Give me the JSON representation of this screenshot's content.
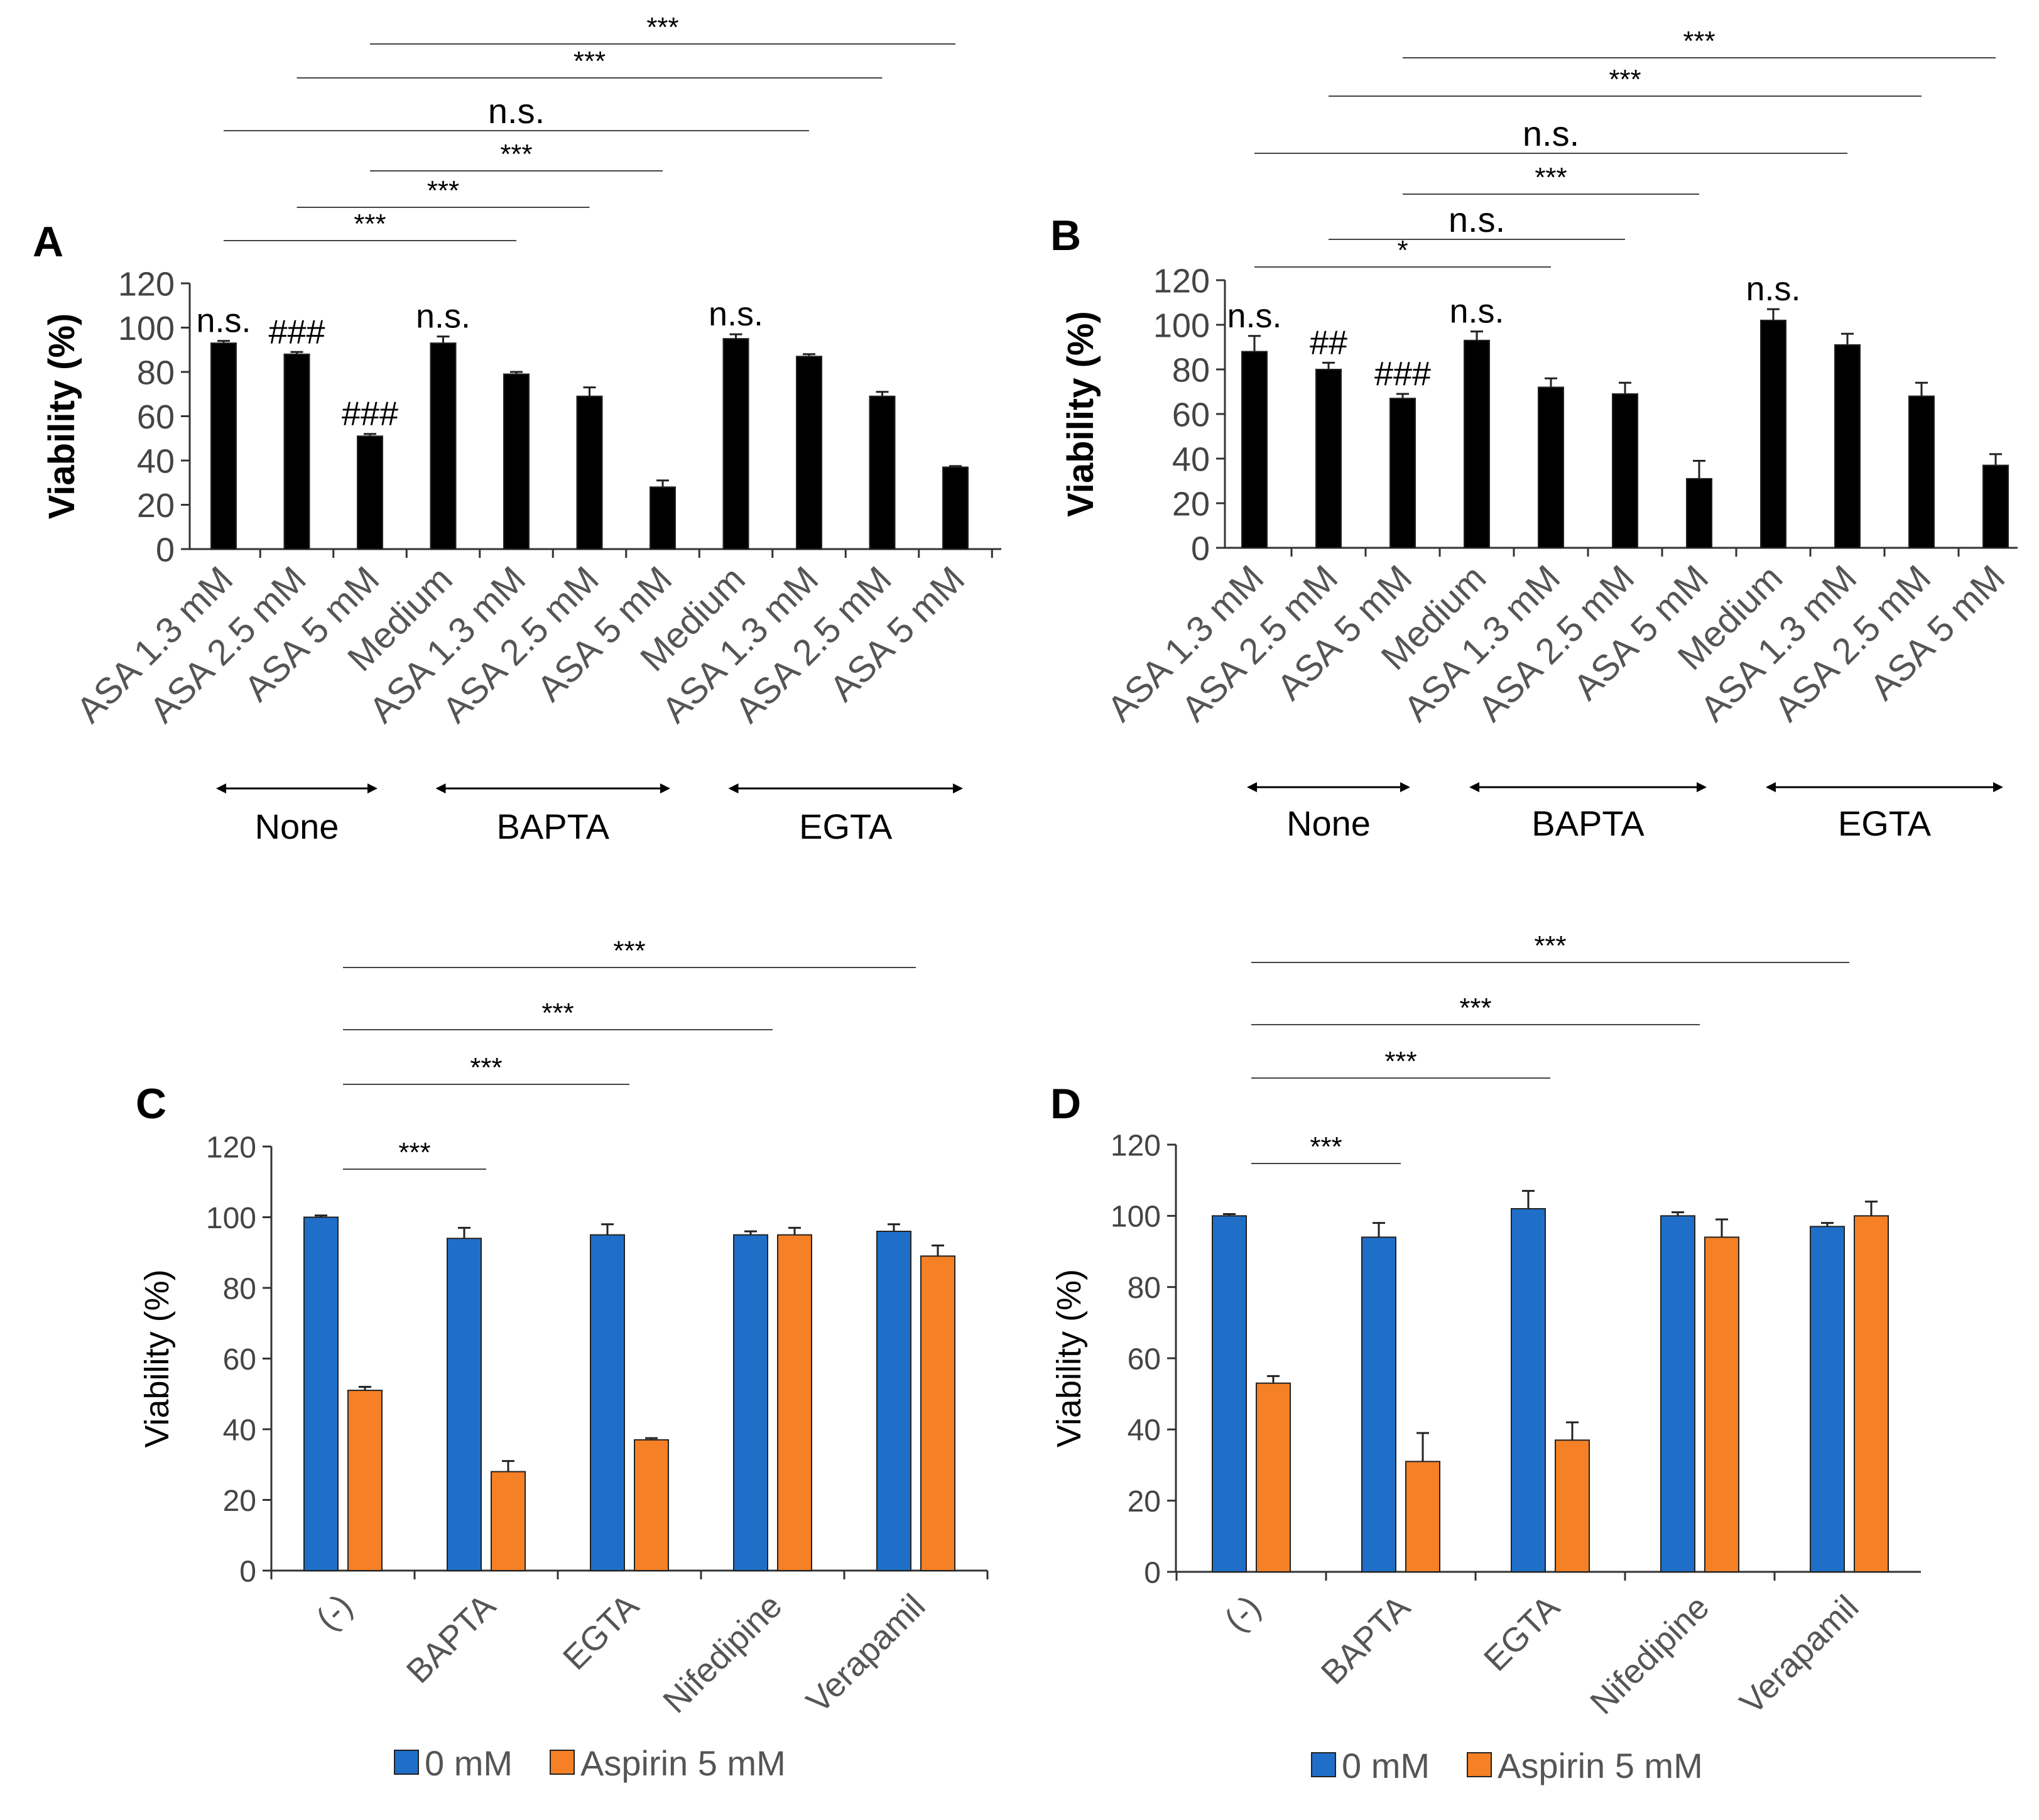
{
  "chart_data": [
    {
      "panel": "A",
      "type": "bar",
      "title": "",
      "xlabel": "",
      "ylabel": "Viability (%)",
      "ylim": [
        0,
        120
      ],
      "yticks": [
        "0",
        "20",
        "40",
        "60",
        "80",
        "100",
        "120"
      ],
      "categories": [
        "ASA 1.3 mM",
        "ASA 2.5 mM",
        "ASA 5 mM",
        "Medium",
        "ASA 1.3  mM",
        "ASA 2.5 mM",
        "ASA 5 mM",
        "Medium",
        "ASA 1.3 mM",
        "ASA 2.5 mM",
        "ASA 5 mM"
      ],
      "series": [
        {
          "name": "Viability",
          "color": "#000000",
          "values": [
            93,
            88,
            51,
            93,
            79,
            69,
            28,
            95,
            87,
            69,
            37
          ],
          "errors": [
            1,
            1,
            1,
            3,
            1,
            4,
            3,
            2,
            1,
            2,
            0.5
          ]
        }
      ],
      "bar_labels": [
        "n.s.",
        "###",
        "###",
        "n.s.",
        "",
        "",
        "",
        "n.s.",
        "",
        "",
        ""
      ],
      "groups": [
        {
          "label": "None",
          "from": 0,
          "to": 2
        },
        {
          "label": "BAPTA",
          "from": 3,
          "to": 6
        },
        {
          "label": "EGTA",
          "from": 7,
          "to": 10
        }
      ],
      "significance": [
        {
          "from": 0,
          "to": 4,
          "label": "***"
        },
        {
          "from": 1,
          "to": 5,
          "label": "***"
        },
        {
          "from": 2,
          "to": 6,
          "label": "***"
        },
        {
          "from": 0,
          "to": 8,
          "label": "n.s."
        },
        {
          "from": 1,
          "to": 9,
          "label": "***"
        },
        {
          "from": 2,
          "to": 10,
          "label": "***"
        }
      ]
    },
    {
      "panel": "B",
      "type": "bar",
      "title": "",
      "xlabel": "",
      "ylabel": "Viability (%)",
      "ylim": [
        0,
        120
      ],
      "yticks": [
        "0",
        "20",
        "40",
        "60",
        "80",
        "100",
        "120"
      ],
      "categories": [
        "ASA 1.3 mM",
        "ASA 2.5 mM",
        "ASA 5 mM",
        "Medium",
        "ASA 1.3 mM",
        "ASA 2.5 mM",
        "ASA 5 mM",
        "Medium",
        "ASA 1.3 mM",
        "ASA 2.5 mM",
        "ASA 5 mM"
      ],
      "series": [
        {
          "name": "Viability",
          "color": "#000000",
          "values": [
            88,
            80,
            67,
            93,
            72,
            69,
            31,
            102,
            91,
            68,
            37
          ],
          "errors": [
            7,
            3,
            2,
            4,
            4,
            5,
            8,
            5,
            5,
            6,
            5
          ]
        }
      ],
      "bar_labels": [
        "n.s.",
        "##",
        "###",
        "n.s.",
        "",
        "",
        "",
        "n.s.",
        "",
        "",
        ""
      ],
      "groups": [
        {
          "label": "None",
          "from": 0,
          "to": 2
        },
        {
          "label": "BAPTA",
          "from": 3,
          "to": 6
        },
        {
          "label": "EGTA",
          "from": 7,
          "to": 10
        }
      ],
      "significance": [
        {
          "from": 0,
          "to": 4,
          "label": "*"
        },
        {
          "from": 1,
          "to": 5,
          "label": "n.s."
        },
        {
          "from": 2,
          "to": 6,
          "label": "***"
        },
        {
          "from": 0,
          "to": 8,
          "label": "n.s."
        },
        {
          "from": 1,
          "to": 9,
          "label": "***"
        },
        {
          "from": 2,
          "to": 10,
          "label": "***"
        }
      ]
    },
    {
      "panel": "C",
      "type": "bar",
      "title": "",
      "xlabel": "",
      "ylabel": "Viability (%)",
      "ylim": [
        0,
        120
      ],
      "yticks": [
        "0",
        "20",
        "40",
        "60",
        "80",
        "100",
        "120"
      ],
      "categories": [
        "(-)",
        "BAPTA",
        "EGTA",
        "Nifedipine",
        "Verapamil"
      ],
      "series": [
        {
          "name": "0 mM",
          "color": "#1F6FC8",
          "values": [
            100,
            94,
            95,
            95,
            96
          ],
          "errors": [
            0.5,
            3,
            3,
            1,
            2
          ]
        },
        {
          "name": "Aspirin 5 mM",
          "color": "#F58025",
          "values": [
            51,
            28,
            37,
            95,
            89
          ],
          "errors": [
            1,
            3,
            0.5,
            2,
            3
          ]
        }
      ],
      "legend": "bottom",
      "significance": [
        {
          "from": 0,
          "to": 1,
          "label": "***"
        },
        {
          "from": 0,
          "to": 2,
          "label": "***"
        },
        {
          "from": 0,
          "to": 3,
          "label": "***"
        },
        {
          "from": 0,
          "to": 4,
          "label": "***"
        }
      ]
    },
    {
      "panel": "D",
      "type": "bar",
      "title": "",
      "xlabel": "",
      "ylabel": "Viability (%)",
      "ylim": [
        0,
        120
      ],
      "yticks": [
        "0",
        "20",
        "40",
        "60",
        "80",
        "100",
        "120"
      ],
      "categories": [
        "(-)",
        "BAPTA",
        "EGTA",
        "Nifedipine",
        "Verapamil"
      ],
      "series": [
        {
          "name": "0 mM",
          "color": "#1F6FC8",
          "values": [
            100,
            94,
            102,
            100,
            97
          ],
          "errors": [
            0.5,
            4,
            5,
            1,
            1
          ]
        },
        {
          "name": "Aspirin 5 mM",
          "color": "#F58025",
          "values": [
            53,
            31,
            37,
            94,
            100
          ],
          "errors": [
            2,
            8,
            5,
            5,
            4
          ]
        }
      ],
      "legend": "bottom",
      "significance": [
        {
          "from": 0,
          "to": 1,
          "label": "***"
        },
        {
          "from": 0,
          "to": 2,
          "label": "***"
        },
        {
          "from": 0,
          "to": 3,
          "label": "***"
        },
        {
          "from": 0,
          "to": 4,
          "label": "***"
        }
      ]
    }
  ]
}
